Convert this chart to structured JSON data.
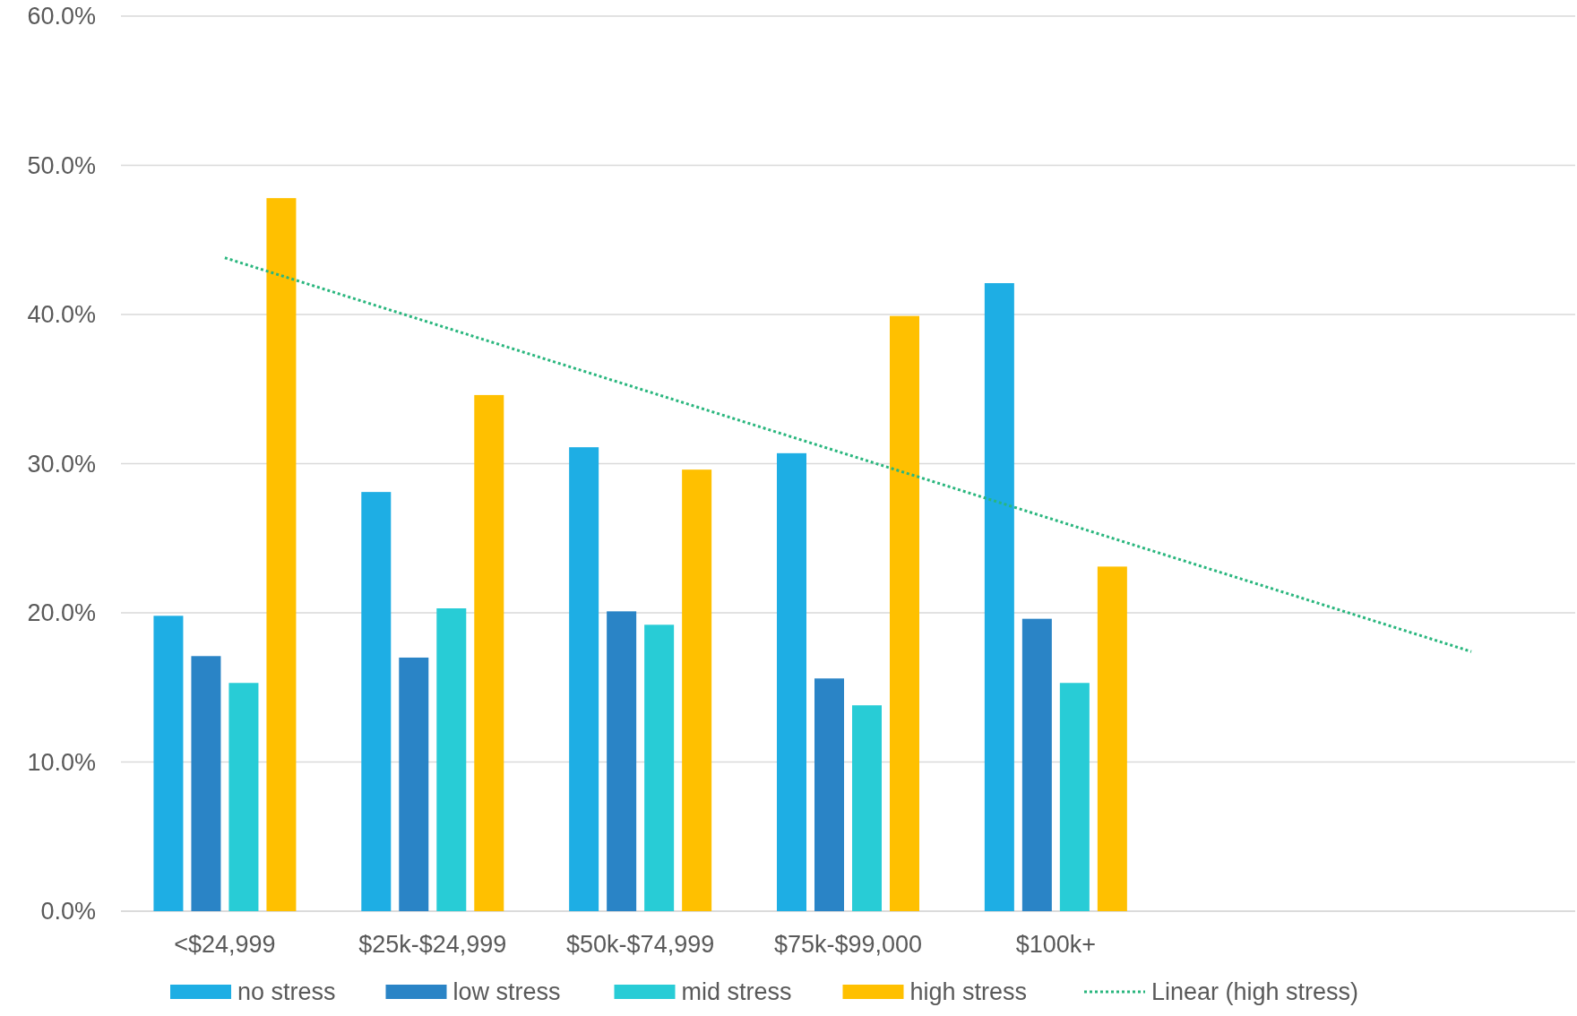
{
  "chart_data": {
    "type": "bar",
    "categories": [
      "<$24,999",
      "$25k-$24,999",
      "$50k-$74,999",
      "$75k-$99,000",
      "$100k+",
      null,
      null
    ],
    "series": [
      {
        "name": "no stress",
        "color": "#1eaee4",
        "values": [
          19.8,
          28.1,
          31.1,
          30.7,
          42.1,
          null,
          null
        ]
      },
      {
        "name": "low stress",
        "color": "#2a84c6",
        "values": [
          17.1,
          17.0,
          20.1,
          15.6,
          19.6,
          null,
          null
        ]
      },
      {
        "name": "mid stress",
        "color": "#28ccd6",
        "values": [
          15.3,
          20.3,
          19.2,
          13.8,
          15.3,
          null,
          null
        ]
      },
      {
        "name": "high stress",
        "color": "#ffc000",
        "values": [
          47.8,
          34.6,
          29.6,
          39.9,
          23.1,
          null,
          null
        ]
      },
      {
        "name": "Linear (high stress)",
        "type": "line",
        "line_style": "dotted",
        "color": "#2ab67e",
        "values": [
          43.8,
          39.4,
          35.0,
          30.6,
          26.2,
          21.8,
          17.4
        ]
      }
    ],
    "ylim": [
      0,
      60
    ],
    "yticks": [
      {
        "value": 0,
        "label": "0.0%"
      },
      {
        "value": 10,
        "label": "10.0%"
      },
      {
        "value": 20,
        "label": "20.0%"
      },
      {
        "value": 30,
        "label": "30.0%"
      },
      {
        "value": 40,
        "label": "40.0%"
      },
      {
        "value": 50,
        "label": "50.0%"
      },
      {
        "value": 60,
        "label": "60.0%"
      }
    ],
    "grid": "y",
    "legend": "bottom"
  }
}
